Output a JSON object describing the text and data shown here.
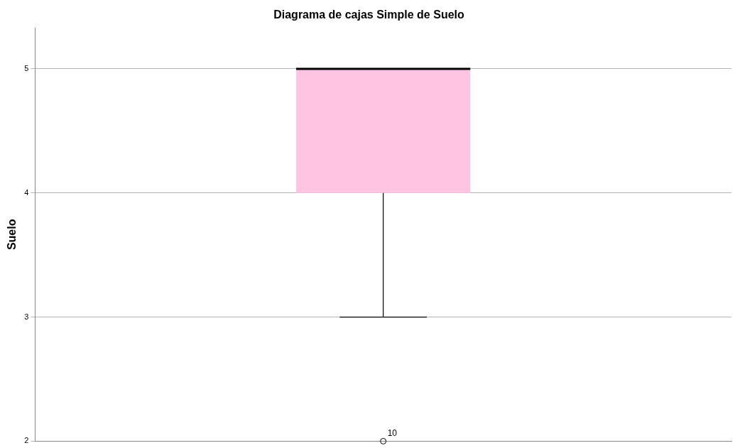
{
  "chart_data": {
    "type": "box",
    "title": "Diagrama de cajas Simple de Suelo",
    "ylabel": "Suelo",
    "categories": [
      null
    ],
    "boxes": [
      {
        "low": 3,
        "q1": 4,
        "median": 5,
        "q3": 5,
        "high": 5,
        "outliers": [
          2
        ]
      }
    ],
    "color": "#ffc4e1",
    "ylim": [
      2,
      5.33
    ],
    "yticks": [
      2,
      3,
      4,
      5
    ],
    "grid": "y",
    "tick_labels": "y",
    "annotations": [
      "10"
    ]
  }
}
